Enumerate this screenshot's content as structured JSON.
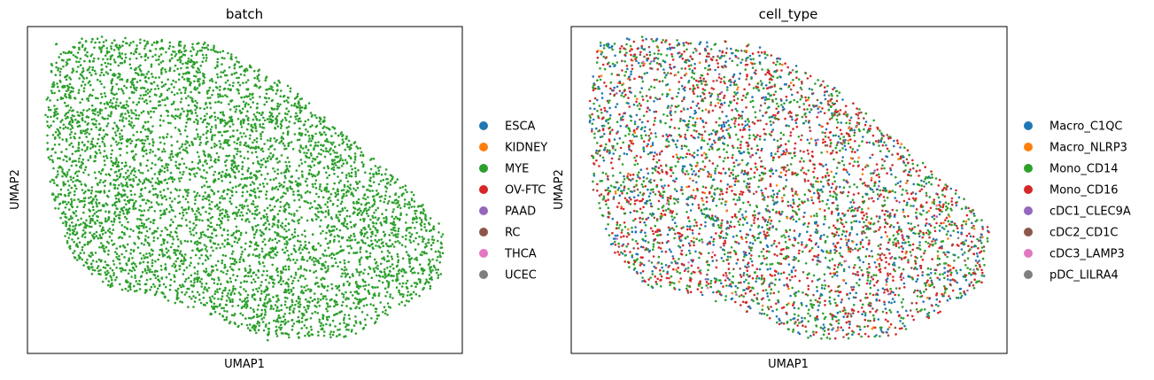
{
  "chart_data": [
    {
      "type": "scatter",
      "title": "batch",
      "xlabel": "UMAP1",
      "ylabel": "UMAP2",
      "grid": false,
      "legend_position": "right",
      "point_count": 5200,
      "categories": [
        {
          "name": "ESCA",
          "color": "#1f77b4",
          "share": 0.0
        },
        {
          "name": "KIDNEY",
          "color": "#ff7f0e",
          "share": 0.0
        },
        {
          "name": "MYE",
          "color": "#2ca02c",
          "share": 1.0
        },
        {
          "name": "OV-FTC",
          "color": "#d62728",
          "share": 0.0
        },
        {
          "name": "PAAD",
          "color": "#9467bd",
          "share": 0.0
        },
        {
          "name": "RC",
          "color": "#8c564b",
          "share": 0.0
        },
        {
          "name": "THCA",
          "color": "#e377c2",
          "share": 0.0
        },
        {
          "name": "UCEC",
          "color": "#7f7f7f",
          "share": 0.0
        }
      ]
    },
    {
      "type": "scatter",
      "title": "cell_type",
      "xlabel": "UMAP1",
      "ylabel": "UMAP2",
      "grid": false,
      "legend_position": "right",
      "point_count": 4200,
      "categories": [
        {
          "name": "Macro_C1QC",
          "color": "#1f77b4",
          "share": 0.22
        },
        {
          "name": "Macro_NLRP3",
          "color": "#ff7f0e",
          "share": 0.03
        },
        {
          "name": "Mono_CD14",
          "color": "#2ca02c",
          "share": 0.34
        },
        {
          "name": "Mono_CD16",
          "color": "#d62728",
          "share": 0.33
        },
        {
          "name": "cDC1_CLEC9A",
          "color": "#9467bd",
          "share": 0.01
        },
        {
          "name": "cDC2_CD1C",
          "color": "#8c564b",
          "share": 0.06
        },
        {
          "name": "cDC3_LAMP3",
          "color": "#e377c2",
          "share": 0.005
        },
        {
          "name": "pDC_LILRA4",
          "color": "#7f7f7f",
          "share": 0.005
        }
      ]
    }
  ]
}
